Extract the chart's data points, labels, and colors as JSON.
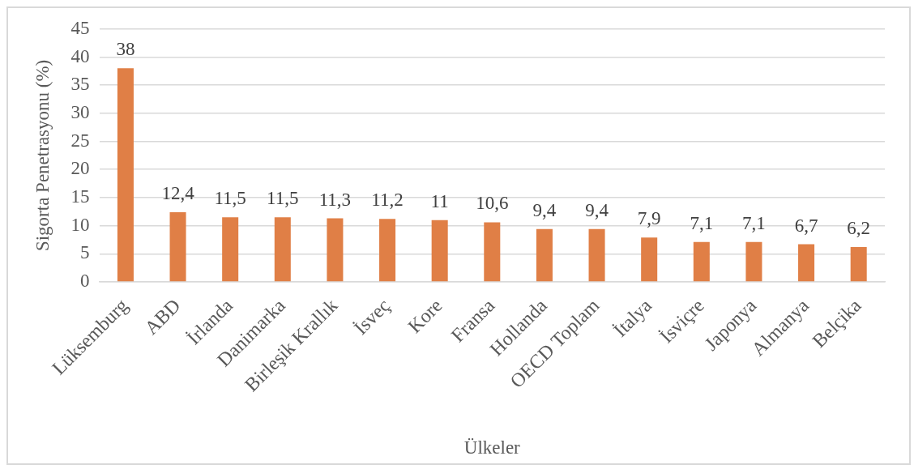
{
  "chart_data": {
    "type": "bar",
    "xlabel": "Ülkeler",
    "ylabel": "Sigorta Penetrasyonu (%)",
    "categories": [
      "Lüksemburg",
      "ABD",
      "İrlanda",
      "Danimarka",
      "Birleşik Krallık",
      "İsveç",
      "Kore",
      "Fransa",
      "Hollanda",
      "OECD Toplam",
      "İtalya",
      "İsviçre",
      "Japonya",
      "Almanya",
      "Belçika"
    ],
    "values": [
      38,
      12.4,
      11.5,
      11.5,
      11.3,
      11.2,
      11,
      10.6,
      9.4,
      9.4,
      7.9,
      7.1,
      7.1,
      6.7,
      6.2
    ],
    "color": "#e07f46",
    "value_labels": [
      "38",
      "12,4",
      "11,5",
      "11,5",
      "11,3",
      "11,2",
      "11",
      "10,6",
      "9,4",
      "9,4",
      "7,9",
      "7,1",
      "7,1",
      "6,7",
      "6,2"
    ],
    "ylim": [
      0,
      45
    ],
    "yticks": [
      0,
      5,
      10,
      15,
      20,
      25,
      30,
      35,
      40,
      45
    ],
    "grid": "y"
  }
}
